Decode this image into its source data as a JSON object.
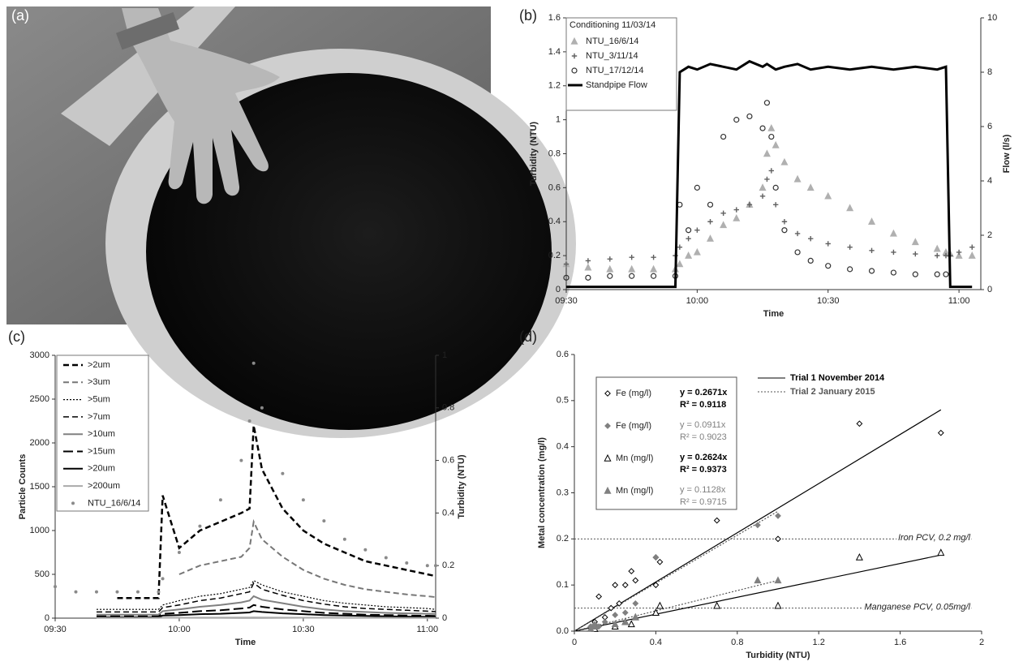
{
  "photo": {
    "label": "(a)"
  },
  "chart_data": [
    {
      "type": "line",
      "label": "(b)",
      "legend_title": "Conditioning 11/03/14",
      "x_label": "Time",
      "y_label": "Turbidity (NTU)",
      "y2_label": "Flow (l/s)",
      "x": [
        "09:30",
        "09:35",
        "09:40",
        "09:45",
        "09:50",
        "09:55",
        "09:56",
        "09:58",
        "10:00",
        "10:03",
        "10:06",
        "10:09",
        "10:12",
        "10:15",
        "10:16",
        "10:17",
        "10:18",
        "10:20",
        "10:23",
        "10:26",
        "10:30",
        "10:35",
        "10:40",
        "10:45",
        "10:50",
        "10:55",
        "10:57",
        "10:58",
        "11:00",
        "11:03"
      ],
      "xlim": [
        "09:30",
        "11:05"
      ],
      "xticks": [
        "09:30",
        "10:00",
        "10:30",
        "11:00"
      ],
      "ylim": [
        0,
        1.6
      ],
      "yticks": [
        0,
        0.2,
        0.4,
        0.6,
        0.8,
        1,
        1.2,
        1.4,
        1.6
      ],
      "y2lim": [
        0,
        10
      ],
      "y2ticks": [
        0,
        2,
        4,
        6,
        8,
        10
      ],
      "series": [
        {
          "name": "NTU_16/6/14",
          "color": "#b0b0b0",
          "marker": "triangle",
          "values": [
            0.15,
            0.13,
            0.12,
            0.12,
            0.12,
            0.12,
            0.15,
            0.2,
            0.22,
            0.3,
            0.38,
            0.42,
            0.5,
            0.6,
            0.8,
            0.95,
            0.85,
            0.75,
            0.65,
            0.6,
            0.55,
            0.48,
            0.4,
            0.33,
            0.28,
            0.24,
            0.22,
            0.21,
            0.2,
            0.2
          ]
        },
        {
          "name": "NTU_3/11/14",
          "color": "#606060",
          "marker": "plus",
          "values": [
            0.15,
            0.17,
            0.18,
            0.19,
            0.19,
            0.2,
            0.25,
            0.3,
            0.35,
            0.4,
            0.45,
            0.47,
            0.5,
            0.55,
            0.65,
            0.7,
            0.5,
            0.4,
            0.33,
            0.3,
            0.27,
            0.25,
            0.23,
            0.22,
            0.21,
            0.2,
            0.2,
            0.2,
            0.22,
            0.25
          ]
        },
        {
          "name": "NTU_17/12/14",
          "color": "#333333",
          "marker": "circle",
          "values": [
            0.07,
            0.07,
            0.08,
            0.08,
            0.08,
            0.08,
            0.5,
            0.35,
            0.6,
            0.5,
            0.9,
            1.0,
            1.02,
            0.95,
            1.1,
            0.9,
            0.6,
            0.35,
            0.22,
            0.17,
            0.14,
            0.12,
            0.11,
            0.1,
            0.09,
            0.09,
            0.09,
            null,
            null,
            null
          ]
        },
        {
          "name": "Standpipe Flow",
          "color": "#000000",
          "line_style": "solid",
          "width": 3,
          "axis": "y2",
          "values": [
            0.1,
            0.1,
            0.1,
            0.1,
            0.1,
            0.1,
            8,
            8.2,
            8.1,
            8.3,
            8.2,
            8.1,
            8.4,
            8.2,
            8.3,
            8.2,
            8.1,
            8.2,
            8.3,
            8.1,
            8.2,
            8.1,
            8.2,
            8.1,
            8.2,
            8.1,
            8.2,
            0.1,
            0.1,
            0.1
          ]
        }
      ]
    },
    {
      "type": "line",
      "label": "(c)",
      "x_label": "Time",
      "y_label": "Particle Counts",
      "y2_label": "Turbidity (NTU)",
      "x": [
        "09:30",
        "09:35",
        "09:40",
        "09:45",
        "09:50",
        "09:55",
        "09:56",
        "10:00",
        "10:05",
        "10:10",
        "10:15",
        "10:17",
        "10:18",
        "10:20",
        "10:25",
        "10:30",
        "10:35",
        "10:40",
        "10:45",
        "10:50",
        "10:55",
        "11:00",
        "11:02"
      ],
      "xlim": [
        "09:30",
        "11:02"
      ],
      "xticks": [
        "09:30",
        "10:00",
        "10:30",
        "11:00"
      ],
      "ylim": [
        0,
        3000
      ],
      "yticks": [
        0,
        500,
        1000,
        1500,
        2000,
        2500,
        3000
      ],
      "y2lim": [
        0,
        1
      ],
      "y2ticks": [
        0,
        0.2,
        0.4,
        0.6,
        0.8,
        1
      ],
      "series": [
        {
          "name": ">2um",
          "color": "#000000",
          "line_style": "dashed",
          "width": 2.5,
          "values": [
            null,
            null,
            null,
            230,
            230,
            230,
            1400,
            800,
            1000,
            1100,
            1200,
            1250,
            2200,
            1700,
            1250,
            1000,
            850,
            750,
            650,
            600,
            550,
            500,
            480
          ]
        },
        {
          "name": ">3um",
          "color": "#777777",
          "line_style": "dashed",
          "width": 2,
          "values": [
            null,
            null,
            null,
            null,
            null,
            null,
            null,
            500,
            600,
            650,
            700,
            800,
            1100,
            900,
            700,
            550,
            450,
            380,
            330,
            300,
            270,
            250,
            240
          ]
        },
        {
          "name": ">5um",
          "color": "#000000",
          "line_style": "dotted",
          "width": 1.2,
          "values": [
            null,
            null,
            100,
            100,
            100,
            100,
            150,
            200,
            250,
            280,
            330,
            350,
            430,
            380,
            300,
            250,
            200,
            170,
            150,
            130,
            120,
            110,
            100
          ]
        },
        {
          "name": ">7um",
          "color": "#000000",
          "line_style": "dashed",
          "width": 1.5,
          "values": [
            null,
            null,
            70,
            70,
            70,
            70,
            120,
            150,
            200,
            230,
            280,
            300,
            400,
            330,
            260,
            200,
            160,
            130,
            110,
            100,
            90,
            80,
            75
          ]
        },
        {
          "name": ">10um",
          "color": "#808080",
          "line_style": "solid",
          "width": 2,
          "values": [
            null,
            null,
            40,
            40,
            40,
            40,
            80,
            100,
            130,
            150,
            180,
            200,
            250,
            210,
            170,
            130,
            100,
            80,
            70,
            60,
            55,
            50,
            48
          ]
        },
        {
          "name": ">15um",
          "color": "#000000",
          "line_style": "long-dashed",
          "width": 2,
          "values": [
            null,
            null,
            20,
            20,
            20,
            20,
            50,
            60,
            80,
            90,
            110,
            120,
            150,
            130,
            100,
            80,
            60,
            50,
            40,
            35,
            30,
            28,
            25
          ]
        },
        {
          "name": ">20um",
          "color": "#000000",
          "line_style": "solid",
          "width": 2,
          "values": [
            null,
            null,
            10,
            10,
            10,
            10,
            30,
            35,
            45,
            50,
            60,
            65,
            80,
            70,
            55,
            45,
            35,
            30,
            25,
            20,
            18,
            15,
            15
          ]
        },
        {
          "name": ">200um",
          "color": "#aaaaaa",
          "line_style": "solid",
          "width": 2,
          "values": [
            null,
            null,
            3,
            3,
            3,
            3,
            5,
            5,
            6,
            6,
            7,
            7,
            8,
            7,
            6,
            5,
            5,
            4,
            4,
            4,
            3,
            3,
            3
          ]
        },
        {
          "name": "NTU_16/6/14",
          "color": "#8a8a8a",
          "marker": "dot",
          "axis": "y2",
          "values": [
            0.12,
            0.1,
            0.1,
            0.1,
            0.1,
            0.1,
            0.15,
            0.25,
            0.35,
            0.45,
            0.6,
            0.75,
            0.97,
            0.8,
            0.55,
            0.45,
            0.37,
            0.3,
            0.26,
            0.23,
            0.21,
            0.2,
            0.2
          ]
        }
      ]
    },
    {
      "type": "scatter",
      "label": "(d)",
      "x_label": "Turbidity (NTU)",
      "y_label": "Metal concentration (mg/l)",
      "xlim": [
        0,
        2
      ],
      "xticks": [
        0,
        0.4,
        0.8,
        1.2,
        1.6,
        2
      ],
      "ylim": [
        0,
        0.6
      ],
      "yticks": [
        {
          "value": 0,
          "label": "0.0"
        },
        0.1,
        0.2,
        0.3,
        0.4,
        0.5,
        0.6
      ],
      "series": [
        {
          "name": "Fe (mg/l)",
          "equation": "y = 0.2671x",
          "r2": "R² = 0.9118",
          "color": "#000000",
          "marker": "diamond-open",
          "x": [
            0.1,
            0.12,
            0.18,
            0.2,
            0.22,
            0.25,
            0.28,
            0.3,
            0.4,
            0.42,
            0.4,
            0.7,
            1.0,
            1.4,
            1.8,
            0.15,
            0.1
          ],
          "values": [
            0.01,
            0.075,
            0.05,
            0.1,
            0.06,
            0.1,
            0.13,
            0.11,
            0.16,
            0.15,
            0.1,
            0.24,
            0.2,
            0.45,
            0.43,
            0.03,
            0.02
          ]
        },
        {
          "name": "Fe  (mg/l)",
          "equation": "y = 0.0911x",
          "r2": "R² = 0.9023",
          "color": "#808080",
          "marker": "diamond-filled",
          "x": [
            0.08,
            0.1,
            0.15,
            0.2,
            0.25,
            0.3,
            0.4,
            0.9,
            1.0,
            0.12
          ],
          "values": [
            0.01,
            0.015,
            0.02,
            0.035,
            0.04,
            0.06,
            0.16,
            0.23,
            0.25,
            0.01
          ]
        },
        {
          "name": "Mn (mg/l)",
          "equation": "y = 0.2624x",
          "r2": "R² = 0.9373",
          "color": "#000000",
          "marker": "triangle-open",
          "x": [
            0.1,
            0.2,
            0.25,
            0.28,
            0.42,
            0.4,
            0.7,
            1.0,
            1.4,
            1.8,
            0.3
          ],
          "values": [
            0.005,
            0.01,
            0.02,
            0.015,
            0.055,
            0.04,
            0.055,
            0.055,
            0.16,
            0.17,
            0.03
          ]
        },
        {
          "name": "Mn  (mg/l)",
          "equation": "y = 0.1128x",
          "r2": "R² = 0.9715",
          "color": "#808080",
          "marker": "triangle-filled",
          "x": [
            0.08,
            0.1,
            0.2,
            0.25,
            0.3,
            0.9,
            1.0
          ],
          "values": [
            0.005,
            0.01,
            0.015,
            0.02,
            0.03,
            0.11,
            0.11
          ]
        }
      ],
      "trendlines": [
        {
          "name": "Trial 1 November 2014",
          "color": "#000000",
          "line_style": "solid",
          "segments": [
            {
              "x": [
                0,
                1.8
              ],
              "values": [
                0,
                0.48
              ]
            },
            {
              "x": [
                0,
                1.8
              ],
              "values": [
                0,
                0.165
              ]
            }
          ]
        },
        {
          "name": "Trial 2 January 2015",
          "color": "#555555",
          "line_style": "dotted",
          "segments": [
            {
              "x": [
                0,
                1.0
              ],
              "values": [
                0,
                0.26
              ]
            },
            {
              "x": [
                0,
                1.0
              ],
              "values": [
                0,
                0.11
              ]
            }
          ]
        }
      ],
      "reference_lines": [
        {
          "value": 0.2,
          "label": "Iron PCV, 0.2 mg/l"
        },
        {
          "value": 0.05,
          "label": "Manganese PCV, 0.05mg/l"
        }
      ]
    }
  ]
}
